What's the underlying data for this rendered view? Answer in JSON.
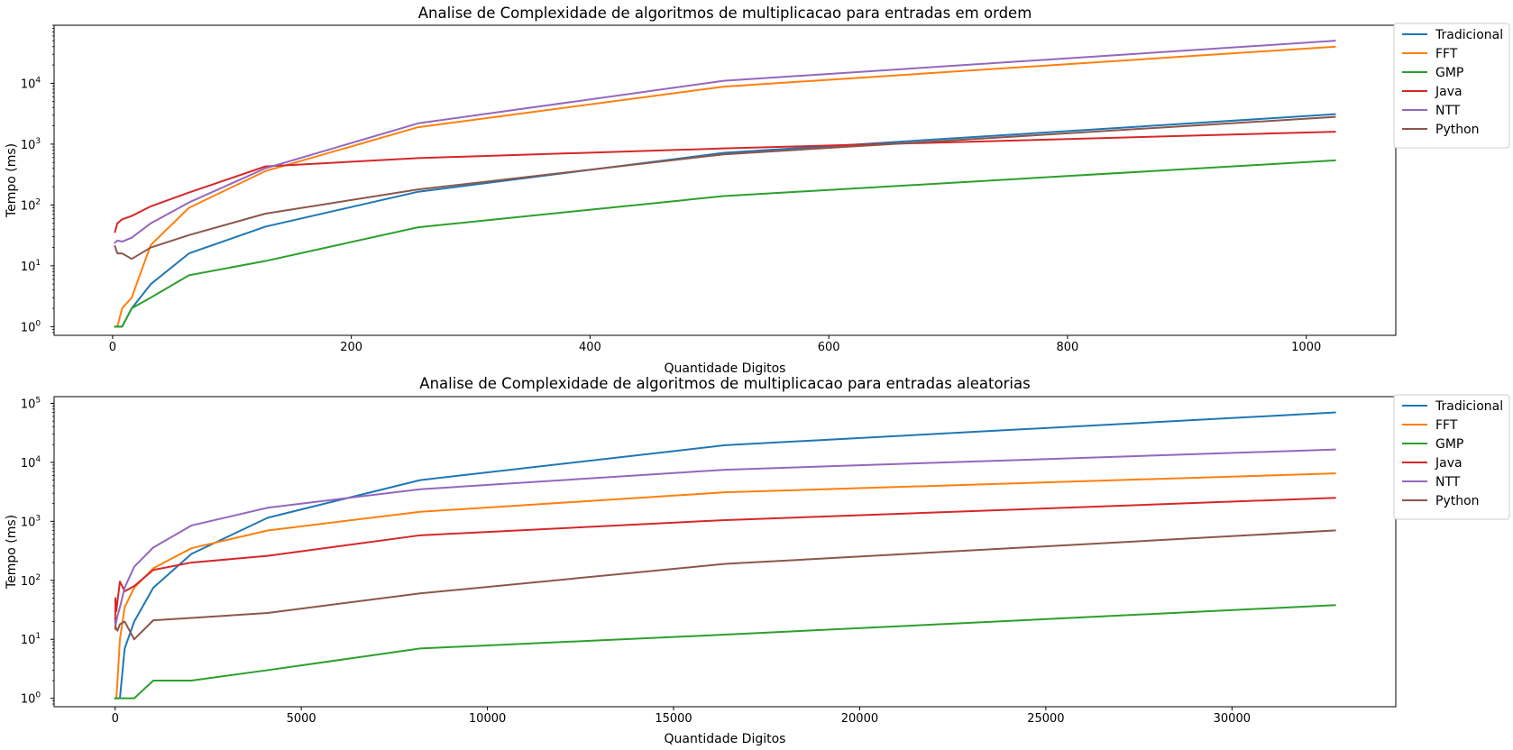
{
  "chart_data": [
    {
      "type": "line",
      "title": "Analise de Complexidade de algoritmos de multiplicacao para entradas em ordem",
      "xlabel": "Quantidade Digitos",
      "ylabel": "Tempo (ms)",
      "xscale": "linear",
      "yscale": "log",
      "xlim": [
        -49,
        1075
      ],
      "ylim": [
        0.72,
        90000
      ],
      "xticks": [
        0,
        200,
        400,
        600,
        800,
        1000
      ],
      "xtick_labels": [
        "0",
        "200",
        "400",
        "600",
        "800",
        "1000"
      ],
      "yticks": [
        1,
        10,
        100,
        1000,
        10000
      ],
      "ytick_labels": [
        {
          "base": "10",
          "exp": "0"
        },
        {
          "base": "10",
          "exp": "1"
        },
        {
          "base": "10",
          "exp": "2"
        },
        {
          "base": "10",
          "exp": "3"
        },
        {
          "base": "10",
          "exp": "4"
        }
      ],
      "legend_position": "outside-top-right",
      "grid": false,
      "series": [
        {
          "name": "Tradicional",
          "color": "#1f77b4",
          "points": [
            [
              2,
              1
            ],
            [
              4,
              1
            ],
            [
              8,
              1
            ],
            [
              16,
              2
            ],
            [
              32,
              5
            ],
            [
              64,
              16
            ],
            [
              128,
              44
            ],
            [
              256,
              165
            ],
            [
              512,
              720
            ],
            [
              1024,
              3100
            ]
          ]
        },
        {
          "name": "FFT",
          "color": "#ff7f0e",
          "points": [
            [
              2,
              1
            ],
            [
              4,
              1
            ],
            [
              8,
              2
            ],
            [
              16,
              3
            ],
            [
              32,
              22
            ],
            [
              64,
              90
            ],
            [
              128,
              360
            ],
            [
              256,
              1900
            ],
            [
              512,
              8800
            ],
            [
              1024,
              40000
            ]
          ]
        },
        {
          "name": "GMP",
          "color": "#2ca02c",
          "points": [
            [
              2,
              1
            ],
            [
              4,
              1
            ],
            [
              8,
              1
            ],
            [
              16,
              2
            ],
            [
              32,
              3
            ],
            [
              64,
              7
            ],
            [
              128,
              12
            ],
            [
              256,
              43
            ],
            [
              512,
              140
            ],
            [
              1024,
              540
            ]
          ]
        },
        {
          "name": "Java",
          "color": "#d62728",
          "points": [
            [
              2,
              36
            ],
            [
              4,
              50
            ],
            [
              8,
              58
            ],
            [
              16,
              66
            ],
            [
              32,
              95
            ],
            [
              64,
              160
            ],
            [
              128,
              430
            ],
            [
              256,
              590
            ],
            [
              512,
              850
            ],
            [
              1024,
              1600
            ]
          ]
        },
        {
          "name": "NTT",
          "color": "#9467bd",
          "points": [
            [
              2,
              24
            ],
            [
              4,
              26
            ],
            [
              8,
              25
            ],
            [
              16,
              29
            ],
            [
              32,
              50
            ],
            [
              64,
              110
            ],
            [
              128,
              400
            ],
            [
              256,
              2200
            ],
            [
              512,
              11000
            ],
            [
              1024,
              50000
            ]
          ]
        },
        {
          "name": "Python",
          "color": "#8c564b",
          "points": [
            [
              2,
              21
            ],
            [
              4,
              16
            ],
            [
              8,
              16
            ],
            [
              16,
              13
            ],
            [
              32,
              20
            ],
            [
              64,
              32
            ],
            [
              128,
              72
            ],
            [
              256,
              180
            ],
            [
              512,
              680
            ],
            [
              1024,
              2800
            ]
          ]
        }
      ]
    },
    {
      "type": "line",
      "title": "Analise de Complexidade de algoritmos de multiplicacao para entradas aleatorias",
      "xlabel": "Quantidade Digitos",
      "ylabel": "Tempo (ms)",
      "xscale": "linear",
      "yscale": "log",
      "xlim": [
        -1640,
        34400
      ],
      "ylim": [
        0.72,
        130000
      ],
      "xticks": [
        0,
        5000,
        10000,
        15000,
        20000,
        25000,
        30000
      ],
      "xtick_labels": [
        "0",
        "5000",
        "10000",
        "15000",
        "20000",
        "25000",
        "30000"
      ],
      "yticks": [
        1,
        10,
        100,
        1000,
        10000,
        100000
      ],
      "ytick_labels": [
        {
          "base": "10",
          "exp": "0"
        },
        {
          "base": "10",
          "exp": "1"
        },
        {
          "base": "10",
          "exp": "2"
        },
        {
          "base": "10",
          "exp": "3"
        },
        {
          "base": "10",
          "exp": "4"
        },
        {
          "base": "10",
          "exp": "5"
        }
      ],
      "legend_position": "outside-top-right",
      "grid": false,
      "series": [
        {
          "name": "Tradicional",
          "color": "#1f77b4",
          "points": [
            [
              2,
              1
            ],
            [
              4,
              1
            ],
            [
              8,
              1
            ],
            [
              16,
              1
            ],
            [
              32,
              1
            ],
            [
              64,
              1
            ],
            [
              128,
              1
            ],
            [
              256,
              7
            ],
            [
              512,
              20
            ],
            [
              1024,
              75
            ],
            [
              2048,
              280
            ],
            [
              4096,
              1150
            ],
            [
              8192,
              5000
            ],
            [
              16384,
              19500
            ],
            [
              32768,
              70000
            ]
          ]
        },
        {
          "name": "FFT",
          "color": "#ff7f0e",
          "points": [
            [
              2,
              1
            ],
            [
              4,
              1
            ],
            [
              8,
              1
            ],
            [
              16,
              1
            ],
            [
              32,
              1
            ],
            [
              64,
              2
            ],
            [
              128,
              10
            ],
            [
              256,
              35
            ],
            [
              512,
              75
            ],
            [
              1024,
              160
            ],
            [
              2048,
              350
            ],
            [
              4096,
              700
            ],
            [
              8192,
              1450
            ],
            [
              16384,
              3100
            ],
            [
              32768,
              6500
            ]
          ]
        },
        {
          "name": "GMP",
          "color": "#2ca02c",
          "points": [
            [
              2,
              1
            ],
            [
              4,
              1
            ],
            [
              8,
              1
            ],
            [
              16,
              1
            ],
            [
              32,
              1
            ],
            [
              64,
              1
            ],
            [
              128,
              1
            ],
            [
              256,
              1
            ],
            [
              512,
              1
            ],
            [
              1024,
              2
            ],
            [
              2048,
              2
            ],
            [
              4096,
              3
            ],
            [
              8192,
              7
            ],
            [
              16384,
              12
            ],
            [
              32768,
              38
            ]
          ]
        },
        {
          "name": "Java",
          "color": "#d62728",
          "points": [
            [
              2,
              20
            ],
            [
              4,
              30
            ],
            [
              8,
              50
            ],
            [
              16,
              40
            ],
            [
              32,
              30
            ],
            [
              64,
              45
            ],
            [
              128,
              95
            ],
            [
              256,
              65
            ],
            [
              512,
              80
            ],
            [
              1024,
              150
            ],
            [
              2048,
              200
            ],
            [
              4096,
              260
            ],
            [
              8192,
              580
            ],
            [
              16384,
              1050
            ],
            [
              32768,
              2500
            ]
          ]
        },
        {
          "name": "NTT",
          "color": "#9467bd",
          "points": [
            [
              2,
              20
            ],
            [
              4,
              18
            ],
            [
              8,
              17
            ],
            [
              16,
              18
            ],
            [
              32,
              20
            ],
            [
              64,
              25
            ],
            [
              128,
              35
            ],
            [
              256,
              75
            ],
            [
              512,
              170
            ],
            [
              1024,
              360
            ],
            [
              2048,
              850
            ],
            [
              4096,
              1700
            ],
            [
              8192,
              3500
            ],
            [
              16384,
              7500
            ],
            [
              32768,
              16500
            ]
          ]
        },
        {
          "name": "Python",
          "color": "#8c564b",
          "points": [
            [
              2,
              15
            ],
            [
              4,
              16
            ],
            [
              8,
              17
            ],
            [
              16,
              16
            ],
            [
              32,
              15
            ],
            [
              64,
              14
            ],
            [
              128,
              18
            ],
            [
              256,
              20
            ],
            [
              512,
              10
            ],
            [
              1024,
              21
            ],
            [
              2048,
              23
            ],
            [
              4096,
              28
            ],
            [
              8192,
              60
            ],
            [
              16384,
              190
            ],
            [
              32768,
              700
            ]
          ]
        }
      ]
    }
  ]
}
